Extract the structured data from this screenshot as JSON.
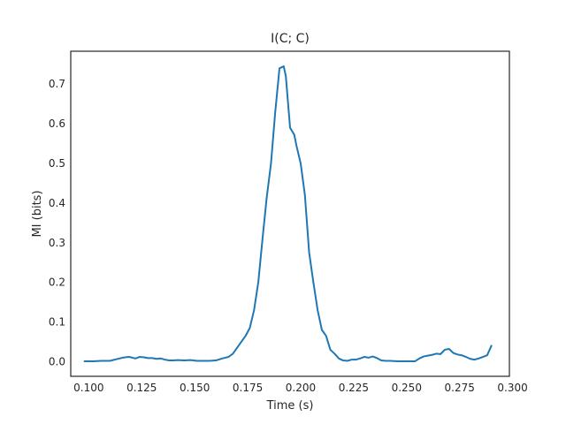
{
  "chart_data": {
    "type": "line",
    "title": "I(C; C)",
    "xlabel": "Time (s)",
    "ylabel": "MI (bits)",
    "xlim": [
      0.0915,
      0.2985
    ],
    "ylim": [
      -0.037,
      0.783
    ],
    "xticks": [
      0.1,
      0.125,
      0.15,
      0.175,
      0.2,
      0.225,
      0.25,
      0.275,
      0.3
    ],
    "xtick_labels": [
      "0.100",
      "0.125",
      "0.150",
      "0.175",
      "0.200",
      "0.225",
      "0.250",
      "0.275",
      "0.300"
    ],
    "yticks": [
      0.0,
      0.1,
      0.2,
      0.3,
      0.4,
      0.5,
      0.6,
      0.7
    ],
    "ytick_labels": [
      "0.0",
      "0.1",
      "0.2",
      "0.3",
      "0.4",
      "0.5",
      "0.6",
      "0.7"
    ],
    "grid": false,
    "series": [
      {
        "color": "#1f77b4",
        "x": [
          0.098,
          0.102,
          0.106,
          0.11,
          0.113,
          0.116,
          0.119,
          0.122,
          0.124,
          0.126,
          0.128,
          0.13,
          0.132,
          0.134,
          0.136,
          0.138,
          0.14,
          0.142,
          0.145,
          0.148,
          0.151,
          0.154,
          0.157,
          0.16,
          0.163,
          0.166,
          0.168,
          0.17,
          0.172,
          0.174,
          0.176,
          0.178,
          0.18,
          0.182,
          0.184,
          0.186,
          0.188,
          0.19,
          0.192,
          0.193,
          0.195,
          0.197,
          0.198,
          0.2,
          0.202,
          0.204,
          0.206,
          0.208,
          0.21,
          0.212,
          0.214,
          0.216,
          0.218,
          0.22,
          0.222,
          0.224,
          0.226,
          0.228,
          0.23,
          0.232,
          0.234,
          0.236,
          0.238,
          0.24,
          0.242,
          0.246,
          0.25,
          0.254,
          0.256,
          0.258,
          0.26,
          0.262,
          0.264,
          0.266,
          0.268,
          0.27,
          0.272,
          0.274,
          0.276,
          0.278,
          0.28,
          0.282,
          0.284,
          0.286,
          0.288,
          0.29
        ],
        "y": [
          0.001,
          0.001,
          0.002,
          0.002,
          0.006,
          0.01,
          0.012,
          0.008,
          0.012,
          0.011,
          0.009,
          0.009,
          0.007,
          0.008,
          0.005,
          0.003,
          0.003,
          0.004,
          0.003,
          0.004,
          0.002,
          0.002,
          0.002,
          0.003,
          0.008,
          0.012,
          0.02,
          0.035,
          0.05,
          0.065,
          0.085,
          0.13,
          0.2,
          0.31,
          0.415,
          0.5,
          0.63,
          0.74,
          0.745,
          0.72,
          0.59,
          0.572,
          0.545,
          0.5,
          0.42,
          0.275,
          0.2,
          0.13,
          0.08,
          0.065,
          0.03,
          0.02,
          0.008,
          0.003,
          0.002,
          0.005,
          0.005,
          0.008,
          0.012,
          0.01,
          0.013,
          0.009,
          0.003,
          0.002,
          0.002,
          0.001,
          0.001,
          0.001,
          0.008,
          0.013,
          0.015,
          0.017,
          0.02,
          0.019,
          0.03,
          0.032,
          0.022,
          0.018,
          0.016,
          0.012,
          0.007,
          0.005,
          0.008,
          0.012,
          0.016,
          0.04
        ]
      }
    ]
  }
}
